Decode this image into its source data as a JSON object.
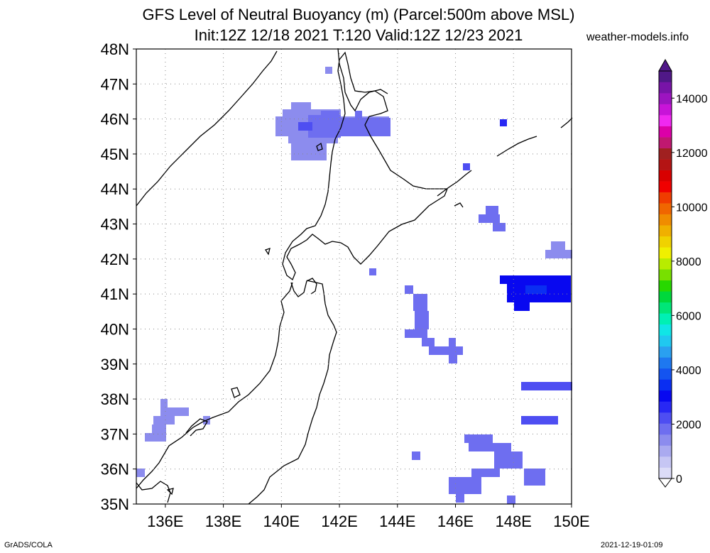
{
  "title": {
    "line1": "GFS Level of Neutral Buoyancy (m) (Parcel:500m above MSL)",
    "line2": "Init:12Z 12/18 2021 T:120 Valid:12Z 12/23 2021"
  },
  "site": "weather-models.info",
  "footer": {
    "left": "GrADS/COLA",
    "right": "2021-12-19-01:09"
  },
  "axes": {
    "lat_labels": [
      "48N",
      "47N",
      "46N",
      "45N",
      "44N",
      "43N",
      "42N",
      "41N",
      "40N",
      "39N",
      "38N",
      "37N",
      "36N",
      "35N"
    ],
    "lon_labels": [
      "136E",
      "138E",
      "140E",
      "142E",
      "144E",
      "146E",
      "148E",
      "150E"
    ],
    "lon_range": [
      135,
      150
    ],
    "lat_range": [
      35,
      48
    ],
    "grid": "dotted"
  },
  "colorbar": {
    "labels": [
      "14000",
      "12000",
      "10000",
      "8000",
      "6000",
      "4000",
      "2000",
      "0"
    ],
    "colors": [
      "#dcdcf8",
      "#c6c6f4",
      "#aaaaf0",
      "#8c8cee",
      "#6e6ef0",
      "#4e4ef2",
      "#2828f4",
      "#0808f0",
      "#0a2ef2",
      "#1454f0",
      "#1e78f0",
      "#2aa0f0",
      "#20c8f0",
      "#10e6e6",
      "#00f0b4",
      "#00e678",
      "#00d83c",
      "#28d800",
      "#78e000",
      "#b8ec00",
      "#f0f000",
      "#f0d200",
      "#f0b000",
      "#f08c00",
      "#f06600",
      "#f03c00",
      "#f00000",
      "#d80000",
      "#b41414",
      "#a02020",
      "#c01870",
      "#dc00a8",
      "#f028f0",
      "#c814d8",
      "#9c14c0",
      "#7814a8",
      "#501888"
    ]
  },
  "lnb_cells": [
    {
      "lon": 141.0,
      "lat": 46.3,
      "m": 1500
    },
    {
      "lon": 141.5,
      "lat": 45.7,
      "m": 1700
    },
    {
      "lon": 142.8,
      "lat": 45.8,
      "m": 1800
    },
    {
      "lon": 147.2,
      "lat": 43.2,
      "m": 2000
    },
    {
      "lon": 149.3,
      "lat": 42.2,
      "m": 1400
    },
    {
      "lon": 148.8,
      "lat": 41.0,
      "m": 3200
    },
    {
      "lon": 144.8,
      "lat": 40.0,
      "m": 2000
    },
    {
      "lon": 146.0,
      "lat": 39.5,
      "m": 1800
    },
    {
      "lon": 149.0,
      "lat": 38.4,
      "m": 2200
    },
    {
      "lon": 148.8,
      "lat": 37.4,
      "m": 2100
    },
    {
      "lon": 147.5,
      "lat": 36.4,
      "m": 1900
    },
    {
      "lon": 135.8,
      "lat": 37.3,
      "m": 1300
    }
  ]
}
